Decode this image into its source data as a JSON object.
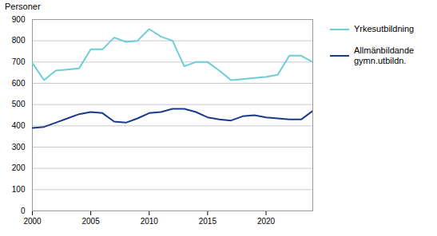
{
  "chart_data": {
    "type": "line",
    "ylabel": "Personer",
    "x": [
      2000,
      2001,
      2002,
      2003,
      2004,
      2005,
      2006,
      2007,
      2008,
      2009,
      2010,
      2011,
      2012,
      2013,
      2014,
      2015,
      2016,
      2017,
      2018,
      2019,
      2020,
      2021,
      2022,
      2023,
      2024
    ],
    "series": [
      {
        "name": "Yrkesutbildning",
        "color": "#6dcdd6",
        "values": [
          695,
          615,
          660,
          665,
          670,
          760,
          760,
          815,
          795,
          800,
          855,
          820,
          800,
          680,
          700,
          700,
          660,
          615,
          620,
          625,
          630,
          640,
          730,
          730,
          700
        ]
      },
      {
        "name": "Allmänbildande\ngymn.utbildn.",
        "color": "#1a3a8c",
        "values": [
          390,
          395,
          415,
          435,
          455,
          465,
          460,
          420,
          415,
          435,
          460,
          465,
          480,
          480,
          465,
          440,
          430,
          425,
          445,
          450,
          440,
          435,
          430,
          430,
          470
        ]
      }
    ],
    "xlim": [
      2000,
      2024
    ],
    "xticks": [
      2000,
      2005,
      2010,
      2015,
      2020
    ],
    "ylim": [
      0,
      900
    ],
    "yticks": [
      0,
      100,
      200,
      300,
      400,
      500,
      600,
      700,
      800,
      900
    ],
    "grid": true,
    "legend": "right"
  }
}
